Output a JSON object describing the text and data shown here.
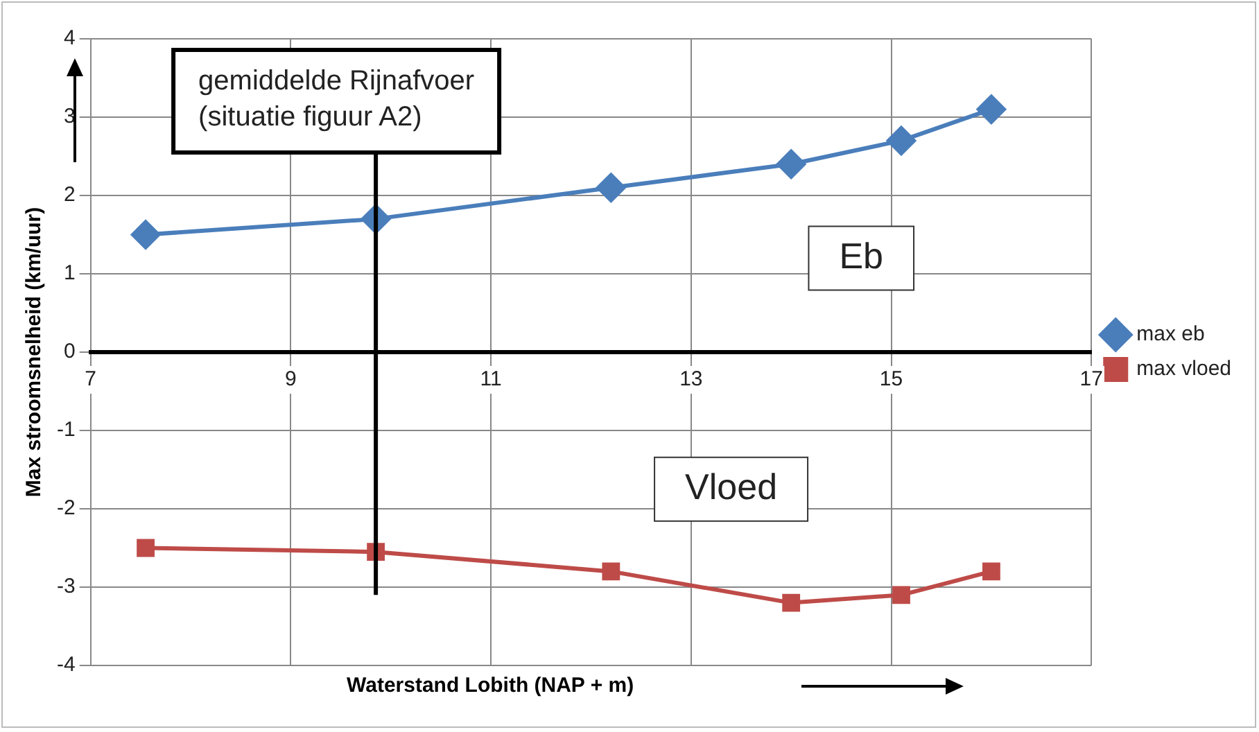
{
  "chart_data": {
    "type": "line",
    "xlabel": "Waterstand Lobith (NAP + m)",
    "ylabel": "Max stroomsnelheid (km/uur)",
    "x": [
      7.55,
      9.85,
      12.2,
      14.0,
      15.1,
      16.0
    ],
    "series": [
      {
        "name": "max eb",
        "color": "#4a7ebb",
        "marker": "diamond",
        "values": [
          1.5,
          1.7,
          2.1,
          2.4,
          2.7,
          3.1
        ]
      },
      {
        "name": "max vloed",
        "color": "#be4b48",
        "marker": "square",
        "values": [
          -2.5,
          -2.55,
          -2.8,
          -3.2,
          -3.1,
          -2.8
        ]
      }
    ],
    "xlim": [
      7,
      17
    ],
    "xticks": [
      7,
      9,
      11,
      13,
      15,
      17
    ],
    "ylim": [
      -4,
      4
    ],
    "yticks": [
      -4,
      -3,
      -2,
      -1,
      0,
      1,
      2,
      3,
      4
    ],
    "grid": true,
    "legend": "right",
    "ref_lines": [
      {
        "axis": "x",
        "value": 9.85,
        "label": "gemiddelde Rijnafvoer\n(situatie figuur A2)",
        "color": "#000000"
      }
    ],
    "annotations": [
      "Eb",
      "Vloed"
    ]
  }
}
